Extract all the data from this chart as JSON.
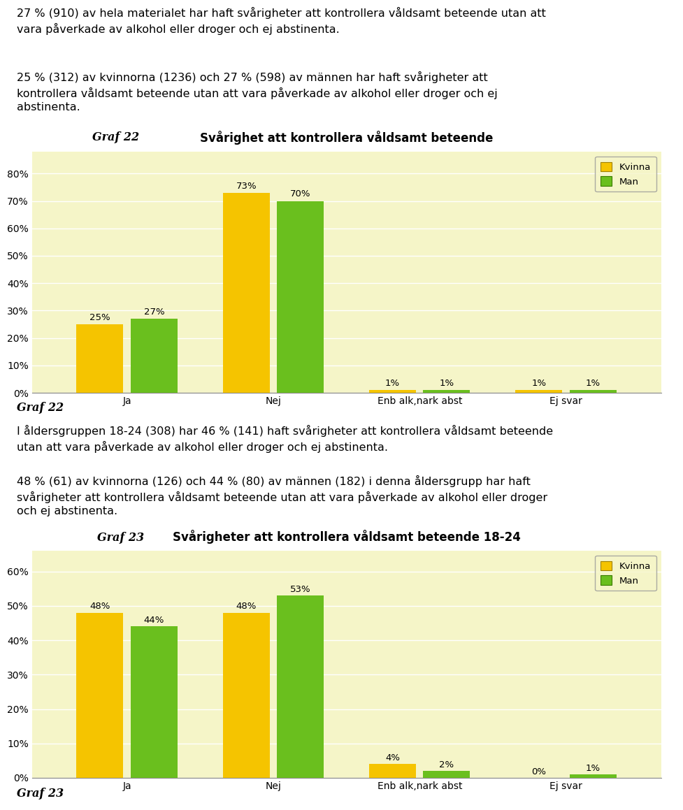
{
  "page_bg": "#ffffff",
  "chart_bg": "#f5f5c8",
  "kvinna_color": "#f5c400",
  "man_color": "#6abf1e",
  "legend_edge": "#c8a000",
  "text_color": "#000000",
  "para1_line1": "27 % (910) av hela materialet har haft svårigheter att kontrollera våldsamt beteende utan att",
  "para1_line2": "vara påverkade av alkohol eller droger och ej abstinenta.",
  "para2_line1": "25 % (312) av kvinnorna (1236) och 27 % (598) av männen har haft svårigheter att",
  "para2_line2": "kontrollera våldsamt beteende utan att vara påverkade av alkohol eller droger och ej",
  "para2_line3": "abstinenta.",
  "para2_italic": "Graf 22",
  "chart1_title": "Svårighet att kontrollera våldsamt beteende",
  "chart1_categories": [
    "Ja",
    "Nej",
    "Enb alk,nark abst",
    "Ej svar"
  ],
  "chart1_kvinna": [
    25,
    73,
    1,
    1
  ],
  "chart1_man": [
    27,
    70,
    1,
    1
  ],
  "chart1_ylim": [
    0,
    88
  ],
  "chart1_yticks": [
    0,
    10,
    20,
    30,
    40,
    50,
    60,
    70,
    80
  ],
  "chart1_yticklabels": [
    "0%",
    "10%",
    "20%",
    "30%",
    "40%",
    "50%",
    "60%",
    "70%",
    "80%"
  ],
  "graf22_label": "Graf 22",
  "para3_line1": "I åldersgruppen 18-24 (308) har 46 % (141) haft svårigheter att kontrollera våldsamt beteende",
  "para3_line2": "utan att vara påverkade av alkohol eller droger och ej abstinenta.",
  "para4_line1": "48 % (61) av kvinnorna (126) och 44 % (80) av männen (182) i denna åldersgrupp har haft",
  "para4_line2": "svårigheter att kontrollera våldsamt beteende utan att vara påverkade av alkohol eller droger",
  "para4_line3": "och ej abstinenta.",
  "para4_italic": "Graf 23",
  "chart2_title": "Svårigheter att kontrollera våldsamt beteende 18-24",
  "chart2_categories": [
    "Ja",
    "Nej",
    "Enb alk,nark abst",
    "Ej svar"
  ],
  "chart2_kvinna": [
    48,
    48,
    4,
    0
  ],
  "chart2_man": [
    44,
    53,
    2,
    1
  ],
  "chart2_ylim": [
    0,
    66
  ],
  "chart2_yticks": [
    0,
    10,
    20,
    30,
    40,
    50,
    60
  ],
  "chart2_yticklabels": [
    "0%",
    "10%",
    "20%",
    "30%",
    "40%",
    "50%",
    "60%"
  ],
  "graf23_label": "Graf 23"
}
